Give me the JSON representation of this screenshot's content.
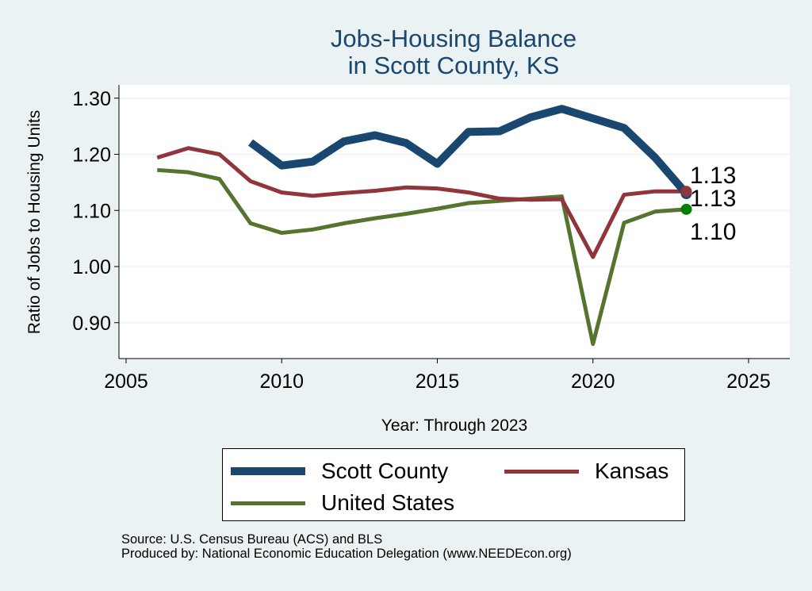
{
  "chart_data": {
    "type": "line",
    "title": [
      "Jobs-Housing Balance",
      "in Scott County, KS"
    ],
    "xlabel": "Year: Through 2023",
    "ylabel": "Ratio of Jobs to Housing Units",
    "xlim": [
      2004,
      2026.5
    ],
    "ylim": [
      0.84,
      1.325
    ],
    "xticks": [
      "2005",
      "2010",
      "2015",
      "2020",
      "2025"
    ],
    "yticks": [
      "0.90",
      "1.00",
      "1.10",
      "1.20",
      "1.30"
    ],
    "grid": true,
    "legend_position": "bottom",
    "series": [
      {
        "name": "Scott County",
        "color": "#1a476f",
        "end_label": "1.13",
        "x": [
          2009,
          2010,
          2011,
          2012,
          2013,
          2014,
          2015,
          2016,
          2017,
          2018,
          2019,
          2020,
          2021,
          2022,
          2023
        ],
        "values": [
          1.221,
          1.18,
          1.187,
          1.223,
          1.234,
          1.22,
          1.183,
          1.24,
          1.241,
          1.266,
          1.281,
          1.264,
          1.247,
          1.194,
          1.13
        ]
      },
      {
        "name": "Kansas",
        "color": "#90353b",
        "end_label": "1.13",
        "x": [
          2006,
          2007,
          2008,
          2009,
          2010,
          2011,
          2012,
          2013,
          2014,
          2015,
          2016,
          2017,
          2018,
          2019,
          2020,
          2021,
          2022,
          2023
        ],
        "values": [
          1.194,
          1.211,
          1.2,
          1.152,
          1.132,
          1.126,
          1.131,
          1.135,
          1.141,
          1.139,
          1.132,
          1.121,
          1.119,
          1.12,
          1.017,
          1.128,
          1.134,
          1.134
        ]
      },
      {
        "name": "United States",
        "color": "#55752f",
        "end_label": "1.10",
        "x": [
          2006,
          2007,
          2008,
          2009,
          2010,
          2011,
          2012,
          2013,
          2014,
          2015,
          2016,
          2017,
          2018,
          2019,
          2020,
          2021,
          2022,
          2023
        ],
        "values": [
          1.172,
          1.168,
          1.156,
          1.077,
          1.06,
          1.066,
          1.077,
          1.086,
          1.094,
          1.103,
          1.113,
          1.117,
          1.121,
          1.125,
          0.862,
          1.078,
          1.098,
          1.102
        ]
      }
    ]
  },
  "source": [
    "Source: U.S. Census Bureau (ACS) and BLS",
    "Produced by: National Economic Education Delegation (www.NEEDEcon.org)"
  ]
}
